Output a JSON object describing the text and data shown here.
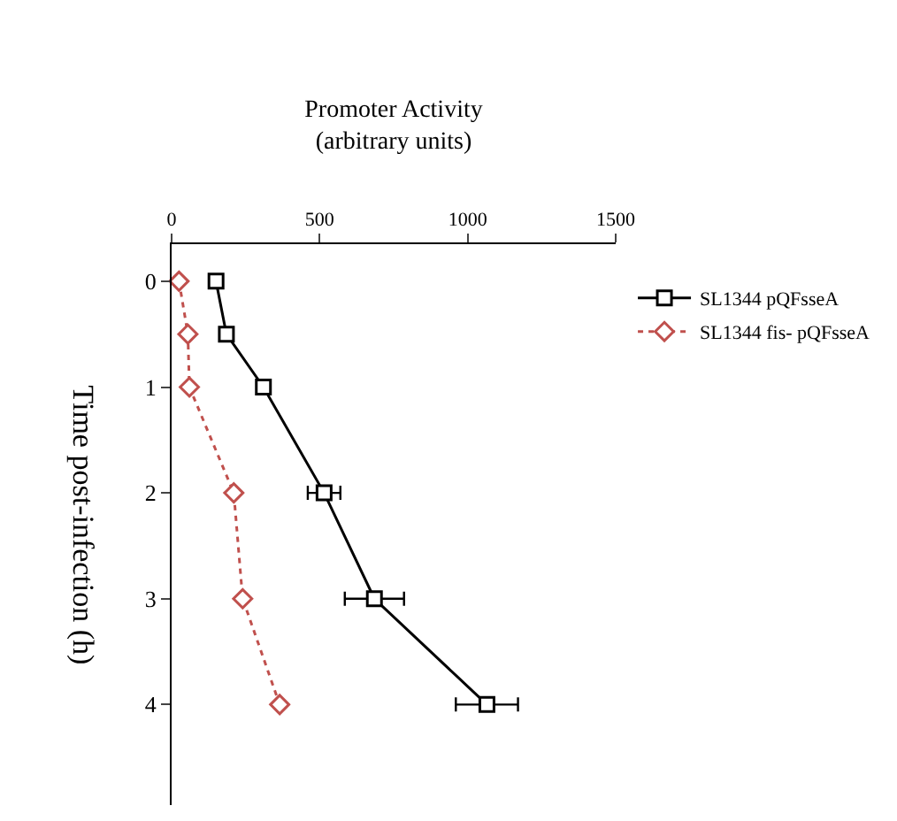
{
  "chart_data": {
    "type": "line",
    "xlabel": "Promoter Activity\n(arbitrary units)",
    "ylabel": "Time post-infection (h)",
    "series": [
      {
        "name": "SL1344 pQFsseA",
        "color": "#000000",
        "marker": "square",
        "line_style": "solid",
        "x": [
          150,
          185,
          310,
          515,
          685,
          1065
        ],
        "values": [
          0,
          0.5,
          1,
          2,
          3,
          4
        ],
        "xerrors": [
          null,
          null,
          null,
          55,
          100,
          105
        ]
      },
      {
        "name": "SL1344 fis- pQFsseA",
        "color": "#c0504d",
        "marker": "diamond",
        "line_style": "dotted",
        "x": [
          25,
          55,
          60,
          210,
          240,
          365
        ],
        "values": [
          0,
          0.5,
          1,
          2,
          3,
          4
        ]
      }
    ],
    "ylim": [
      4.95,
      -0.35
    ],
    "yticks": [
      0,
      1,
      2,
      3,
      4
    ],
    "xlim": [
      0,
      1500
    ],
    "xticks": [
      0,
      500,
      1000,
      1500
    ],
    "legend": "right"
  }
}
